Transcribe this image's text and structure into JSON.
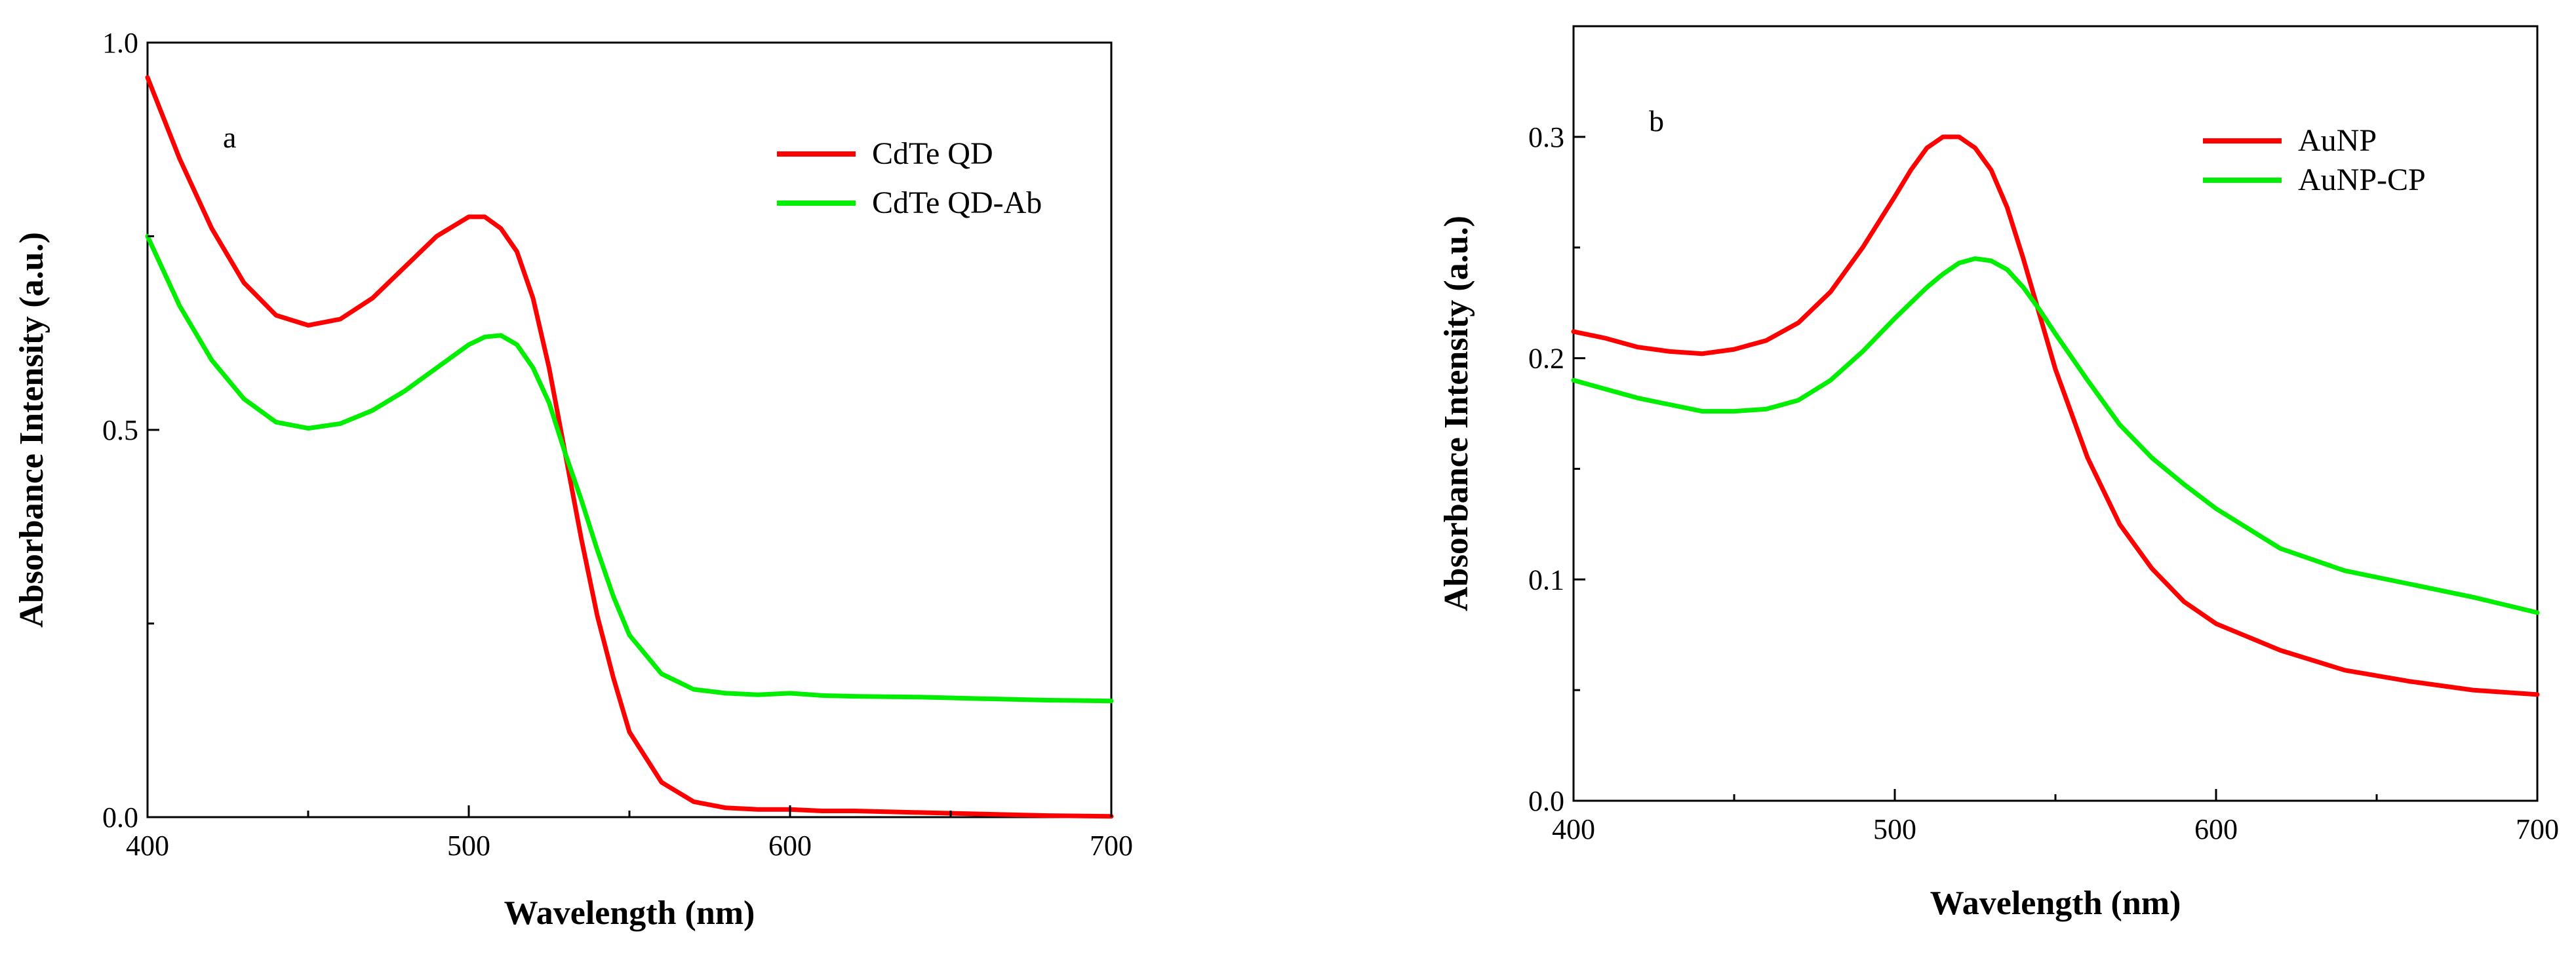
{
  "chart_data": [
    {
      "type": "line",
      "panel_label": "a",
      "xlabel": "Wavelength (nm)",
      "ylabel": "Absorbance Intensity (a.u.)",
      "xlim": [
        400,
        700
      ],
      "ylim": [
        0,
        1
      ],
      "xticks": [
        400,
        500,
        600,
        700
      ],
      "yticks": [
        0,
        0.5,
        1
      ],
      "ytick_labels": [
        "0.0",
        "0.5",
        "1.0"
      ],
      "legend_position": "top-right",
      "series": [
        {
          "name": "CdTe QD",
          "color": "#ff0000",
          "x": [
            400,
            410,
            420,
            430,
            440,
            450,
            460,
            470,
            480,
            490,
            500,
            505,
            510,
            515,
            520,
            525,
            530,
            535,
            540,
            545,
            550,
            560,
            570,
            580,
            590,
            600,
            610,
            620,
            640,
            660,
            680,
            700
          ],
          "y": [
            0.955,
            0.85,
            0.76,
            0.69,
            0.648,
            0.635,
            0.643,
            0.67,
            0.71,
            0.75,
            0.775,
            0.775,
            0.76,
            0.73,
            0.67,
            0.58,
            0.47,
            0.36,
            0.26,
            0.18,
            0.11,
            0.045,
            0.02,
            0.012,
            0.01,
            0.01,
            0.008,
            0.008,
            0.006,
            0.004,
            0.002,
            0.001
          ]
        },
        {
          "name": "CdTe QD-Ab",
          "color": "#00ee00",
          "x": [
            400,
            410,
            420,
            430,
            440,
            450,
            460,
            470,
            480,
            490,
            500,
            505,
            510,
            515,
            520,
            525,
            530,
            535,
            540,
            545,
            550,
            560,
            570,
            580,
            590,
            600,
            610,
            620,
            640,
            660,
            680,
            700
          ],
          "y": [
            0.75,
            0.66,
            0.59,
            0.54,
            0.51,
            0.502,
            0.508,
            0.525,
            0.55,
            0.58,
            0.61,
            0.62,
            0.622,
            0.61,
            0.58,
            0.535,
            0.47,
            0.41,
            0.345,
            0.285,
            0.235,
            0.185,
            0.165,
            0.16,
            0.158,
            0.16,
            0.157,
            0.156,
            0.155,
            0.153,
            0.151,
            0.15
          ]
        }
      ]
    },
    {
      "type": "line",
      "panel_label": "b",
      "xlabel": "Wavelength (nm)",
      "ylabel": "Absorbance Intensity (a.u.)",
      "xlim": [
        400,
        700
      ],
      "ylim": [
        0,
        0.35
      ],
      "xticks": [
        400,
        500,
        600,
        700
      ],
      "yticks": [
        0,
        0.1,
        0.2,
        0.3
      ],
      "ytick_labels": [
        "0.0",
        "0.1",
        "0.2",
        "0.3"
      ],
      "legend_position": "top-right",
      "series": [
        {
          "name": "AuNP",
          "color": "#ff0000",
          "x": [
            400,
            410,
            420,
            430,
            440,
            450,
            460,
            470,
            480,
            490,
            500,
            505,
            510,
            515,
            520,
            525,
            530,
            535,
            540,
            545,
            550,
            560,
            570,
            580,
            590,
            600,
            620,
            640,
            660,
            680,
            700
          ],
          "y": [
            0.212,
            0.209,
            0.205,
            0.203,
            0.202,
            0.204,
            0.208,
            0.216,
            0.23,
            0.25,
            0.273,
            0.285,
            0.295,
            0.3,
            0.3,
            0.295,
            0.285,
            0.268,
            0.245,
            0.22,
            0.195,
            0.155,
            0.125,
            0.105,
            0.09,
            0.08,
            0.068,
            0.059,
            0.054,
            0.05,
            0.048
          ]
        },
        {
          "name": "AuNP-CP",
          "color": "#00ee00",
          "x": [
            400,
            410,
            420,
            430,
            440,
            450,
            460,
            470,
            480,
            490,
            500,
            510,
            515,
            520,
            525,
            530,
            535,
            540,
            545,
            550,
            560,
            570,
            580,
            590,
            600,
            620,
            640,
            660,
            680,
            700
          ],
          "y": [
            0.19,
            0.186,
            0.182,
            0.179,
            0.176,
            0.176,
            0.177,
            0.181,
            0.19,
            0.203,
            0.218,
            0.232,
            0.238,
            0.243,
            0.245,
            0.244,
            0.24,
            0.232,
            0.222,
            0.211,
            0.19,
            0.17,
            0.155,
            0.143,
            0.132,
            0.114,
            0.104,
            0.098,
            0.092,
            0.085
          ]
        }
      ]
    }
  ]
}
